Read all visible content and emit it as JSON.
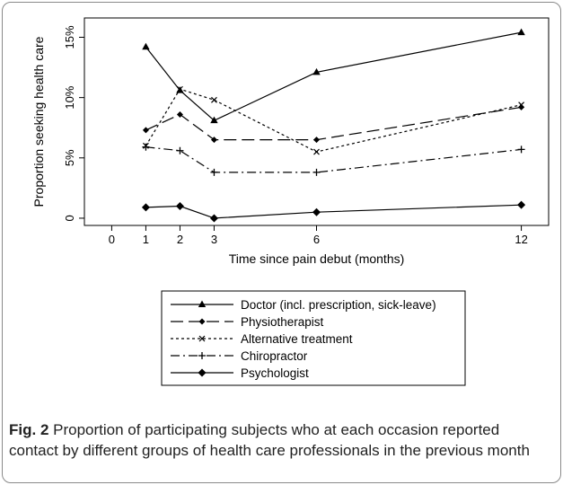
{
  "chart_data": {
    "type": "line",
    "xlabel": "Time since pain debut (months)",
    "ylabel": "Proportion seeking health care",
    "x_ticks": [
      0,
      1,
      2,
      3,
      6,
      12
    ],
    "y_ticks": [
      0,
      5,
      10,
      15
    ],
    "y_tick_labels": [
      "0",
      "5%",
      "10%",
      "15%"
    ],
    "xlim": [
      -0.8,
      12.8
    ],
    "ylim": [
      -0.6,
      16.6
    ],
    "grid": false,
    "legend_position": "bottom",
    "x": [
      1,
      2,
      3,
      6,
      12
    ],
    "series": [
      {
        "name": "Doctor (incl. prescription, sick-leave)",
        "values": [
          14.2,
          10.6,
          8.1,
          12.1,
          15.4
        ],
        "dash": "solid",
        "marker": "triangle"
      },
      {
        "name": "Physiotherapist",
        "values": [
          7.3,
          8.6,
          6.5,
          6.5,
          9.2
        ],
        "dash": "long-dash",
        "marker": "diamond-small"
      },
      {
        "name": "Alternative treatment",
        "values": [
          6.0,
          10.7,
          9.8,
          5.5,
          9.4
        ],
        "dash": "short-dash",
        "marker": "x"
      },
      {
        "name": "Chiropractor",
        "values": [
          5.9,
          5.6,
          3.8,
          3.8,
          5.7
        ],
        "dash": "dash-dot",
        "marker": "plus"
      },
      {
        "name": "Psychologist",
        "values": [
          0.9,
          1.0,
          0.0,
          0.5,
          1.1
        ],
        "dash": "solid",
        "marker": "diamond"
      }
    ]
  },
  "caption": {
    "label": "Fig. 2",
    "text": " Proportion of participating subjects who at each occasion reported contact by different groups of health care professionals in the previous month"
  }
}
